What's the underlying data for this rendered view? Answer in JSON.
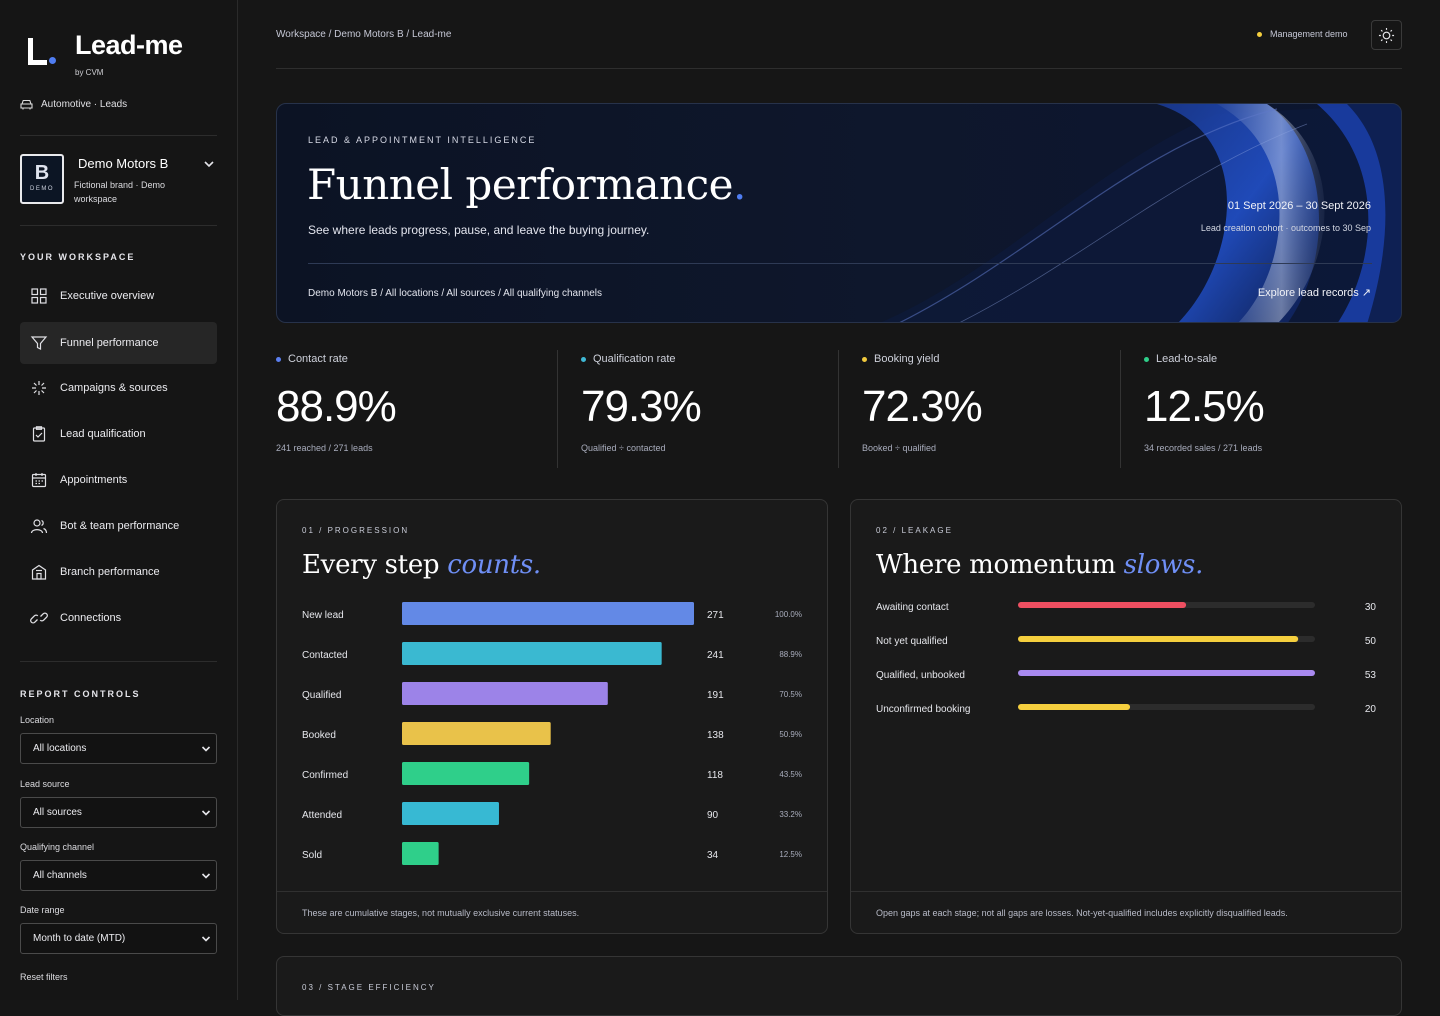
{
  "brand": {
    "name": "Lead-me",
    "by": "by CVM",
    "industry": "Automotive · Leads"
  },
  "org": {
    "badge_letter": "B",
    "badge_tag": "DEMO",
    "name": "Demo Motors B",
    "sub": "Fictional brand · Demo workspace"
  },
  "sidebar": {
    "workspace_label": "YOUR WORKSPACE",
    "items": [
      {
        "label": "Executive overview",
        "icon": "grid-icon"
      },
      {
        "label": "Funnel performance",
        "icon": "filter-icon",
        "active": true
      },
      {
        "label": "Campaigns & sources",
        "icon": "sparkle-icon"
      },
      {
        "label": "Lead qualification",
        "icon": "clipboard-check-icon"
      },
      {
        "label": "Appointments",
        "icon": "calendar-icon"
      },
      {
        "label": "Bot & team performance",
        "icon": "users-icon"
      },
      {
        "label": "Branch performance",
        "icon": "building-icon"
      },
      {
        "label": "Connections",
        "icon": "link-icon"
      }
    ],
    "controls_label": "REPORT CONTROLS",
    "controls": [
      {
        "label": "Location",
        "value": "All locations"
      },
      {
        "label": "Lead source",
        "value": "All sources"
      },
      {
        "label": "Qualifying channel",
        "value": "All channels"
      },
      {
        "label": "Date range",
        "value": "Month to date (MTD)"
      }
    ],
    "reset_label": "Reset filters"
  },
  "header": {
    "breadcrumb": "Workspace / Demo Motors B / Lead-me",
    "mode": "Management demo",
    "mode_color": "#f5cf3e"
  },
  "hero": {
    "eyebrow": "LEAD & APPOINTMENT INTELLIGENCE",
    "title": "Funnel performance",
    "title_dot": ".",
    "subtitle": "See where leads progress, pause, and leave the buying journey.",
    "date_range": "01 Sept 2026 – 30 Sept 2026",
    "cohort": "Lead creation cohort · outcomes to 30 Sep",
    "scope": "Demo Motors B / All locations / All sources / All qualifying channels",
    "explore": "Explore lead records ↗"
  },
  "kpis": [
    {
      "label": "Contact rate",
      "value": "88.9%",
      "sub": "241 reached / 271 leads",
      "color": "#5b7ff0"
    },
    {
      "label": "Qualification rate",
      "value": "79.3%",
      "sub": "Qualified ÷ contacted",
      "color": "#3fb8d4"
    },
    {
      "label": "Booking yield",
      "value": "72.3%",
      "sub": "Booked ÷ qualified",
      "color": "#f0c93d"
    },
    {
      "label": "Lead-to-sale",
      "value": "12.5%",
      "sub": "34 recorded sales / 271 leads",
      "color": "#2fcf8a"
    }
  ],
  "progression": {
    "eyebrow": "01 / PROGRESSION",
    "title": "Every step",
    "title_em": "counts.",
    "footnote": "These are cumulative stages, not mutually exclusive current statuses."
  },
  "leakage": {
    "eyebrow": "02 / LEAKAGE",
    "title": "Where momentum",
    "title_em": "slows.",
    "footnote": "Open gaps at each stage; not all gaps are losses. Not-yet-qualified includes explicitly disqualified leads."
  },
  "stage_efficiency": {
    "eyebrow": "03 / STAGE EFFICIENCY"
  },
  "chart_data": [
    {
      "type": "bar",
      "orientation": "horizontal",
      "categories": [
        "New lead",
        "Contacted",
        "Qualified",
        "Booked",
        "Confirmed",
        "Attended",
        "Sold"
      ],
      "values": [
        271,
        241,
        191,
        138,
        118,
        90,
        34
      ],
      "percent_labels": [
        "100.0%",
        "88.9%",
        "70.5%",
        "50.9%",
        "43.5%",
        "33.2%",
        "12.5%"
      ],
      "colors": [
        "#6389e6",
        "#3ab9d1",
        "#9c83e8",
        "#e9c24a",
        "#2fcf8a",
        "#37b9d3",
        "#2fcf8a"
      ],
      "xlim": [
        0,
        271
      ]
    },
    {
      "type": "bar",
      "orientation": "horizontal",
      "categories": [
        "Awaiting contact",
        "Not yet qualified",
        "Qualified, unbooked",
        "Unconfirmed booking"
      ],
      "values": [
        30,
        50,
        53,
        20
      ],
      "colors": [
        "#ee4f61",
        "#f5cf3e",
        "#a98af0",
        "#f5cf3e"
      ],
      "xlim": [
        0,
        53
      ]
    }
  ]
}
